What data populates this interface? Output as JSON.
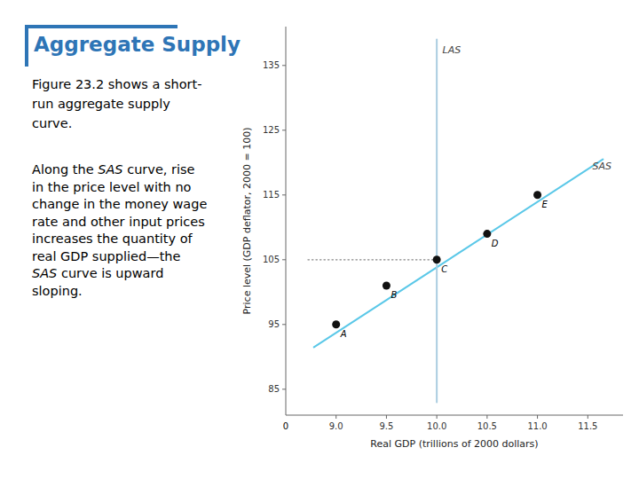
{
  "chart_data": {
    "type": "line",
    "title": "Aggregate Supply",
    "title_color": "#2E75B6",
    "paragraphs": [
      [
        {
          "text": "Figure 23.2 shows a short-\nrun aggregate supply\ncurve.",
          "italic": false
        }
      ],
      [
        {
          "text": "Along the ",
          "italic": false
        },
        {
          "text": "SAS",
          "italic": true
        },
        {
          "text": " curve, rise\nin the price level with no\nchange in the money wage\nrate and other input prices\nincreases the quantity of\nreal GDP supplied—the\n",
          "italic": false
        },
        {
          "text": "SAS",
          "italic": true
        },
        {
          "text": " curve is upward\nsloping.",
          "italic": false
        }
      ]
    ],
    "xlabel": "Real GDP (trillions of 2000 dollars)",
    "ylabel": "Price level (GDP deflator, 2000 = 100)",
    "xlim": [
      8.5,
      11.85
    ],
    "ylim": [
      81,
      141
    ],
    "xticks": [
      {
        "value": 9.0,
        "label": "9.0"
      },
      {
        "value": 9.5,
        "label": "9.5"
      },
      {
        "value": 10.0,
        "label": "10.0"
      },
      {
        "value": 10.5,
        "label": "10.5"
      },
      {
        "value": 11.0,
        "label": "11.0"
      },
      {
        "value": 11.5,
        "label": "11.5"
      }
    ],
    "yticks": [
      85,
      95,
      105,
      115,
      125,
      135
    ],
    "grid": false,
    "series": [
      {
        "type": "line",
        "color": "#5BC8E8",
        "x": [
          8.78,
          11.65
        ],
        "values": [
          91.5,
          120.5
        ]
      },
      {
        "type": "line",
        "color": "#AACDE0",
        "x": [
          10.0,
          10.0
        ],
        "values": [
          83,
          139
        ]
      },
      {
        "type": "line",
        "color": "#888888",
        "line_style": "dotted",
        "x": [
          8.72,
          10.0
        ],
        "values": [
          105,
          105
        ]
      },
      {
        "type": "scatter",
        "color": "#111111",
        "x": [
          9.0,
          9.5,
          10.0,
          10.5,
          11.0
        ],
        "values": [
          95,
          101,
          105,
          109,
          115
        ],
        "labels": [
          "A",
          "B",
          "C",
          "D",
          "E"
        ]
      }
    ],
    "annotations": [
      {
        "text": "SAS",
        "x": 11.52,
        "y": 119.5
      },
      {
        "text": "LAS",
        "x": 10.03,
        "y": 137.5
      },
      {
        "text": "0"
      }
    ]
  }
}
